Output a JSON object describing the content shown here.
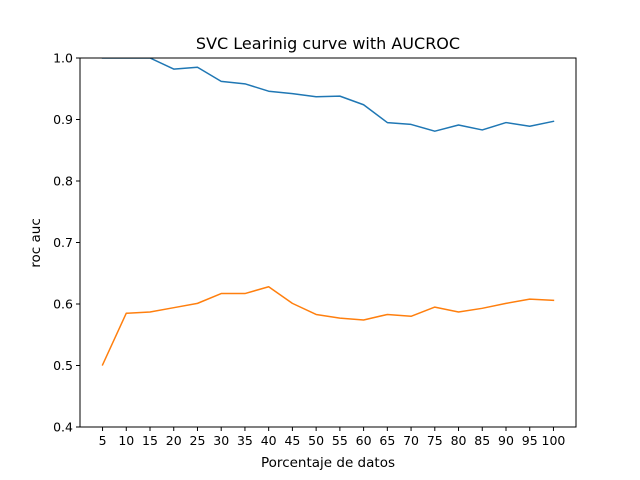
{
  "chart_data": {
    "type": "line",
    "title": "SVC Learinig curve with AUCROC",
    "xlabel": "Porcentaje de datos",
    "ylabel": "roc auc",
    "x": [
      5,
      10,
      15,
      20,
      25,
      30,
      35,
      40,
      45,
      50,
      55,
      60,
      65,
      70,
      75,
      80,
      85,
      90,
      95,
      100
    ],
    "x_tick_labels": [
      "5",
      "10",
      "15",
      "20",
      "25",
      "30",
      "35",
      "40",
      "45",
      "50",
      "55",
      "60",
      "65",
      "70",
      "75",
      "80",
      "85",
      "90",
      "95",
      "100"
    ],
    "ylim": [
      0.4,
      1.0
    ],
    "y_ticks": [
      0.4,
      0.5,
      0.6,
      0.7,
      0.8,
      0.9,
      1.0
    ],
    "y_tick_labels": [
      "0.4",
      "0.5",
      "0.6",
      "0.7",
      "0.8",
      "0.9",
      "1.0"
    ],
    "grid": false,
    "series": [
      {
        "color": "#1f77b4",
        "values": [
          1.0,
          1.0,
          1.0,
          0.982,
          0.985,
          0.962,
          0.958,
          0.946,
          0.942,
          0.937,
          0.938,
          0.924,
          0.895,
          0.892,
          0.881,
          0.891,
          0.883,
          0.895,
          0.889,
          0.897
        ]
      },
      {
        "color": "#ff7f0e",
        "values": [
          0.501,
          0.585,
          0.587,
          0.594,
          0.601,
          0.617,
          0.617,
          0.628,
          0.601,
          0.583,
          0.577,
          0.574,
          0.583,
          0.58,
          0.595,
          0.587,
          0.593,
          0.601,
          0.608,
          0.606
        ]
      }
    ]
  }
}
